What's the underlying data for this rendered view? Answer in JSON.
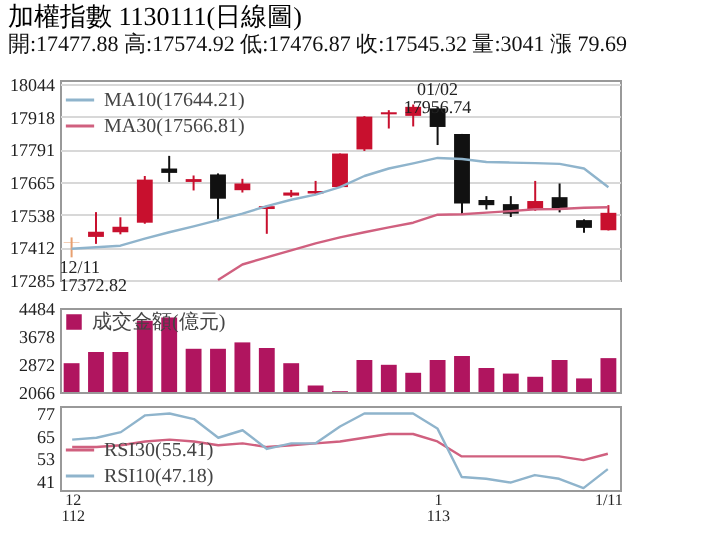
{
  "chart_data": [
    {
      "type": "candlestick",
      "title": "加權指數 1130111(日線圖)",
      "subtitle": "開:17477.88 高:17574.92 低:17476.87 收:17545.32 量:3041 漲 79.69",
      "categories": [
        "12\n112",
        null,
        null,
        null,
        null,
        null,
        null,
        null,
        null,
        null,
        null,
        null,
        null,
        null,
        null,
        "1\n113",
        null,
        null,
        null,
        null,
        null,
        null,
        "1/11"
      ],
      "ohlc": [
        [
          17430,
          17450,
          17372.82,
          17432
        ],
        [
          17452,
          17548,
          17425,
          17472
        ],
        [
          17470,
          17528,
          17462,
          17491
        ],
        [
          17507,
          17688,
          17503,
          17674
        ],
        [
          17717,
          17766,
          17665,
          17700
        ],
        [
          17665,
          17690,
          17632,
          17676
        ],
        [
          17694,
          17698,
          17513,
          17600
        ],
        [
          17633,
          17677,
          17624,
          17659
        ],
        [
          17560,
          17575,
          17464,
          17571
        ],
        [
          17612,
          17634,
          17606,
          17624
        ],
        [
          17620,
          17669,
          17617,
          17630
        ],
        [
          17645,
          17775,
          17643,
          17775
        ],
        [
          17791,
          17920,
          17785,
          17918
        ],
        [
          17927,
          17943,
          17872,
          17935
        ],
        [
          17921,
          17965,
          17880,
          17956
        ],
        [
          17950,
          17956.74,
          17808,
          17878
        ],
        [
          17851,
          17851,
          17541,
          17581
        ],
        [
          17595,
          17610,
          17558,
          17575
        ],
        [
          17579,
          17610,
          17529,
          17542
        ],
        [
          17557,
          17669,
          17553,
          17591
        ],
        [
          17606,
          17659,
          17547,
          17559
        ],
        [
          17517,
          17520,
          17468,
          17487
        ],
        [
          17477.88,
          17574.92,
          17476.87,
          17545.32
        ]
      ],
      "colors": [
        "#e8a070",
        "#c8102e",
        "#c8102e",
        "#c8102e",
        "#111111",
        "#c8102e",
        "#111111",
        "#c8102e",
        "#c8102e",
        "#c8102e",
        "#c8102e",
        "#c8102e",
        "#c8102e",
        "#c8102e",
        "#c8102e",
        "#111111",
        "#111111",
        "#111111",
        "#111111",
        "#c8102e",
        "#111111",
        "#111111",
        "#c8102e"
      ],
      "series": [
        {
          "name": "MA10(17644.21)",
          "type": "line",
          "color": "#8fb4cc",
          "values": [
            17406,
            17412,
            17418,
            17445,
            17470,
            17493,
            17517,
            17542,
            17571,
            17596,
            17616,
            17645,
            17688,
            17717,
            17737,
            17758,
            17754,
            17742,
            17740,
            17738,
            17735,
            17717,
            17644.21
          ]
        },
        {
          "name": "MA30(17566.81)",
          "type": "line",
          "color": "#d0607f",
          "values": [
            null,
            null,
            null,
            null,
            null,
            null,
            17285,
            17345,
            17373,
            17400,
            17427,
            17450,
            17470,
            17489,
            17507,
            17538,
            17540,
            17546,
            17552,
            17559,
            17560,
            17565,
            17566.81
          ]
        }
      ],
      "ylim": [
        17285,
        18060
      ],
      "yticks": [
        17285,
        17412,
        17538,
        17665,
        17791,
        17918,
        18044
      ],
      "grid": "y",
      "legend": "top left",
      "tick_labels": "y",
      "annotations": [
        {
          "text": "01/02\n17956.74",
          "x": "1\n113",
          "y": 17956.74
        },
        {
          "text": "12/11\n17372.82",
          "x": "12\n112",
          "y": 17372.82
        }
      ]
    },
    {
      "type": "bar",
      "categories": [
        "12\n112",
        null,
        null,
        null,
        null,
        null,
        null,
        null,
        null,
        null,
        null,
        null,
        null,
        null,
        null,
        "1\n113",
        null,
        null,
        null,
        null,
        null,
        null,
        "1/11"
      ],
      "series": [
        {
          "name": "成交金額(億元)",
          "color": "#b0155f",
          "values": [
            2895,
            3217,
            3217,
            4115,
            4208,
            3310,
            3310,
            3494,
            3333,
            2895,
            2250,
            2089,
            2987,
            2849,
            2619,
            2987,
            3102,
            2757,
            2596,
            2504,
            2987,
            2457,
            3041
          ]
        }
      ],
      "ylim": [
        2066,
        4484
      ],
      "yticks": [
        2066,
        2872,
        3678,
        4484
      ],
      "legend": "top left",
      "tick_labels": "y"
    },
    {
      "type": "line",
      "categories": [
        "12\n112",
        null,
        null,
        null,
        null,
        null,
        null,
        null,
        null,
        null,
        null,
        null,
        null,
        null,
        null,
        "1\n113",
        null,
        null,
        null,
        null,
        null,
        null,
        "1/11"
      ],
      "series": [
        {
          "name": "RSI30(55.41)",
          "color": "#d0607f",
          "values": [
            59,
            59,
            60,
            62,
            63,
            62,
            60,
            61,
            59,
            60,
            61,
            62,
            64,
            66,
            66,
            62,
            54,
            54,
            54,
            54,
            54,
            52,
            55.41
          ]
        },
        {
          "name": "RSI10(47.18)",
          "color": "#8fb4cc",
          "values": [
            63,
            64,
            67,
            76,
            77,
            74,
            64,
            68,
            58,
            61,
            61,
            70,
            77,
            77,
            77,
            69,
            43,
            42,
            40,
            44,
            42,
            37,
            47.18
          ]
        }
      ],
      "ylim": [
        36,
        81
      ],
      "yticks": [
        41,
        53,
        65,
        77
      ],
      "legend": "bottom left"
    }
  ]
}
